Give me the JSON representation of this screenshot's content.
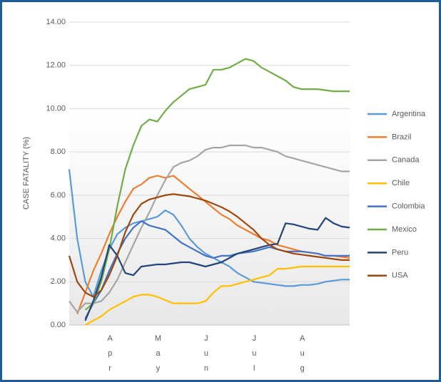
{
  "chart_data": {
    "type": "line",
    "ylabel": "CASE FATALITY (%)",
    "categories": [
      null,
      null,
      null,
      null,
      null,
      "Apr",
      null,
      null,
      null,
      null,
      null,
      "May",
      null,
      null,
      null,
      null,
      null,
      "Jun",
      null,
      null,
      null,
      null,
      null,
      "Jul",
      null,
      null,
      null,
      null,
      null,
      "Aug",
      null,
      null,
      null,
      null,
      null,
      null
    ],
    "ylim": [
      0,
      14
    ],
    "yticks": [
      {
        "value": 0,
        "label": "0.00"
      },
      {
        "value": 2,
        "label": "2.00"
      },
      {
        "value": 4,
        "label": "4.00"
      },
      {
        "value": 6,
        "label": "6.00"
      },
      {
        "value": 8,
        "label": "8.00"
      },
      {
        "value": 10,
        "label": "10.00"
      },
      {
        "value": 12,
        "label": "12.00"
      },
      {
        "value": 14,
        "label": "14.00"
      }
    ],
    "grid": true,
    "legend": "right",
    "series": [
      {
        "name": "Argentina",
        "color": "#5b9bd5",
        "values": [
          7.2,
          4.0,
          2.0,
          1.3,
          2.5,
          3.5,
          4.2,
          4.5,
          4.7,
          4.8,
          4.9,
          5.0,
          5.3,
          5.1,
          4.6,
          4.0,
          3.6,
          3.3,
          3.1,
          2.9,
          2.7,
          2.4,
          2.2,
          2.0,
          1.95,
          1.9,
          1.85,
          1.8,
          1.8,
          1.85,
          1.85,
          1.9,
          2.0,
          2.05,
          2.1,
          2.1
        ]
      },
      {
        "name": "Brazil",
        "color": "#ed7d31",
        "values": [
          null,
          0.5,
          1.5,
          2.5,
          3.3,
          4.2,
          5.0,
          5.7,
          6.3,
          6.5,
          6.8,
          6.9,
          6.8,
          6.9,
          6.6,
          6.3,
          6.0,
          5.7,
          5.4,
          5.1,
          4.9,
          4.6,
          4.4,
          4.2,
          4.0,
          3.9,
          3.7,
          3.6,
          3.5,
          3.4,
          3.35,
          3.3,
          3.2,
          3.2,
          3.15,
          3.1
        ]
      },
      {
        "name": "Canada",
        "color": "#a5a5a5",
        "values": [
          1.1,
          0.6,
          1.0,
          1.0,
          1.1,
          1.5,
          2.1,
          2.9,
          3.7,
          4.5,
          5.2,
          6.0,
          6.7,
          7.3,
          7.5,
          7.6,
          7.8,
          8.1,
          8.2,
          8.2,
          8.3,
          8.3,
          8.3,
          8.2,
          8.2,
          8.1,
          8.0,
          7.8,
          7.7,
          7.6,
          7.5,
          7.4,
          7.3,
          7.2,
          7.1,
          7.1
        ]
      },
      {
        "name": "Chile",
        "color": "#ffc000",
        "values": [
          null,
          null,
          0.0,
          0.2,
          0.4,
          0.7,
          0.9,
          1.1,
          1.3,
          1.4,
          1.4,
          1.3,
          1.15,
          1.0,
          1.0,
          1.0,
          1.0,
          1.1,
          1.5,
          1.8,
          1.8,
          1.9,
          2.0,
          2.1,
          2.2,
          2.3,
          2.6,
          2.6,
          2.65,
          2.7,
          2.7,
          2.7,
          2.7,
          2.7,
          2.7,
          2.7
        ]
      },
      {
        "name": "Colombia",
        "color": "#4472c4",
        "values": [
          null,
          null,
          0.3,
          1.0,
          1.6,
          2.5,
          3.3,
          4.0,
          4.5,
          4.8,
          4.6,
          4.5,
          4.4,
          4.1,
          3.8,
          3.6,
          3.4,
          3.2,
          3.1,
          3.2,
          3.2,
          3.3,
          3.35,
          3.4,
          3.5,
          3.6,
          3.5,
          3.4,
          3.4,
          3.4,
          3.35,
          3.3,
          3.2,
          3.2,
          3.2,
          3.2
        ]
      },
      {
        "name": "Mexico",
        "color": "#70ad47",
        "values": [
          null,
          null,
          0.7,
          1.0,
          2.0,
          3.5,
          5.5,
          7.2,
          8.3,
          9.2,
          9.5,
          9.4,
          9.9,
          10.3,
          10.6,
          10.9,
          11.0,
          11.1,
          11.8,
          11.8,
          11.9,
          12.1,
          12.3,
          12.2,
          11.9,
          11.7,
          11.5,
          11.3,
          11.0,
          10.9,
          10.9,
          10.9,
          10.85,
          10.8,
          10.8,
          10.8
        ]
      },
      {
        "name": "Peru",
        "color": "#264478",
        "values": [
          null,
          null,
          0.2,
          1.1,
          2.2,
          3.7,
          3.2,
          2.4,
          2.3,
          2.7,
          2.75,
          2.8,
          2.8,
          2.85,
          2.9,
          2.9,
          2.8,
          2.7,
          2.8,
          2.9,
          3.1,
          3.3,
          3.4,
          3.5,
          3.6,
          3.7,
          3.75,
          4.7,
          4.65,
          4.55,
          4.45,
          4.4,
          4.95,
          4.7,
          4.55,
          4.5
        ]
      },
      {
        "name": "USA",
        "color": "#9e480e",
        "values": [
          3.2,
          2.0,
          1.5,
          1.3,
          1.6,
          2.3,
          3.2,
          4.3,
          5.1,
          5.6,
          5.8,
          5.9,
          6.0,
          6.05,
          6.0,
          5.95,
          5.85,
          5.75,
          5.6,
          5.45,
          5.25,
          5.0,
          4.7,
          4.4,
          4.0,
          3.7,
          3.5,
          3.4,
          3.3,
          3.25,
          3.2,
          3.15,
          3.1,
          3.05,
          3.0,
          3.0
        ]
      }
    ]
  }
}
